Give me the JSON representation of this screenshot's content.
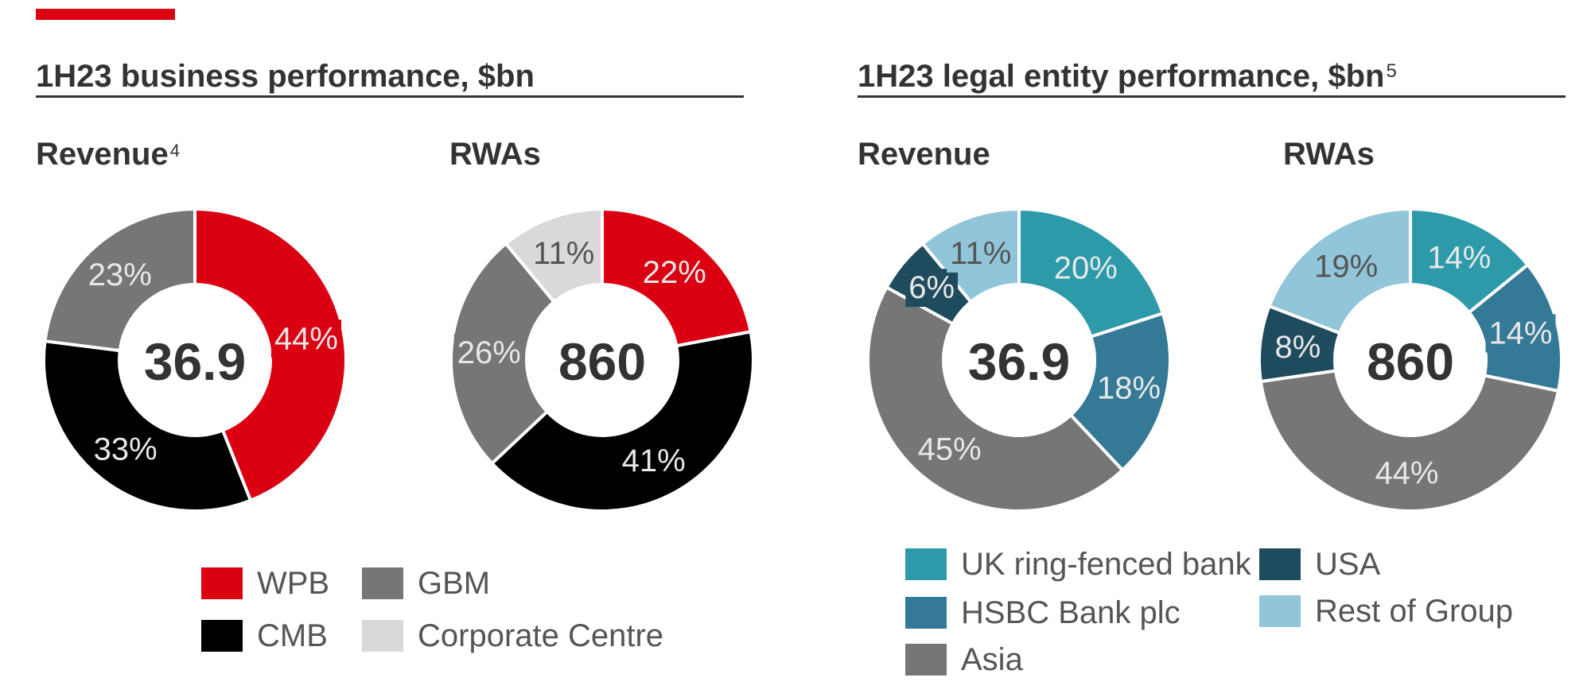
{
  "colors": {
    "accent": "#db0011",
    "WPB": "#db0011",
    "CMB": "#000000",
    "GBM": "#767676",
    "Corporate Centre": "#d9d9d9",
    "UK ring-fenced bank": "#2c9aa8",
    "HSBC Bank plc": "#347995",
    "Asia": "#767676",
    "USA": "#1f4b5e",
    "Rest of Group": "#91c5d9"
  },
  "sections": [
    {
      "title": "1H23 business performance, $bn",
      "footnote": ""
    },
    {
      "title": "1H23 legal entity performance, $bn",
      "footnote": "5"
    }
  ],
  "chart_data": [
    {
      "type": "pie",
      "group": "1H23 business performance, $bn",
      "title": "Revenue",
      "title_footnote": "4",
      "center_label": "36.9",
      "slices": [
        {
          "name": "WPB",
          "value": 44,
          "label": "44%"
        },
        {
          "name": "CMB",
          "value": 33,
          "label": "33%"
        },
        {
          "name": "GBM",
          "value": 23,
          "label": "23%"
        }
      ]
    },
    {
      "type": "pie",
      "group": "1H23 business performance, $bn",
      "title": "RWAs",
      "title_footnote": "",
      "center_label": "860",
      "slices": [
        {
          "name": "WPB",
          "value": 22,
          "label": "22%"
        },
        {
          "name": "CMB",
          "value": 41,
          "label": "41%"
        },
        {
          "name": "GBM",
          "value": 26,
          "label": "26%"
        },
        {
          "name": "Corporate Centre",
          "value": 11,
          "label": "11%"
        }
      ]
    },
    {
      "type": "pie",
      "group": "1H23 legal entity performance, $bn",
      "title": "Revenue",
      "title_footnote": "",
      "center_label": "36.9",
      "slices": [
        {
          "name": "UK ring-fenced bank",
          "value": 20,
          "label": "20%"
        },
        {
          "name": "HSBC Bank plc",
          "value": 18,
          "label": "18%"
        },
        {
          "name": "Asia",
          "value": 45,
          "label": "45%"
        },
        {
          "name": "USA",
          "value": 6,
          "label": "6%"
        },
        {
          "name": "Rest of Group",
          "value": 11,
          "label": "11%"
        }
      ]
    },
    {
      "type": "pie",
      "group": "1H23 legal entity performance, $bn",
      "title": "RWAs",
      "title_footnote": "",
      "center_label": "860",
      "slices": [
        {
          "name": "UK ring-fenced bank",
          "value": 14,
          "label": "14%"
        },
        {
          "name": "HSBC Bank plc",
          "value": 14,
          "label": "14%"
        },
        {
          "name": "Asia",
          "value": 44,
          "label": "44%"
        },
        {
          "name": "USA",
          "value": 8,
          "label": "8%"
        },
        {
          "name": "Rest of Group",
          "value": 19,
          "label": "19%"
        }
      ]
    }
  ],
  "legends": {
    "business": [
      "WPB",
      "GBM",
      "CMB",
      "Corporate Centre"
    ],
    "legal_entity": [
      "UK ring-fenced bank",
      "USA",
      "HSBC Bank plc",
      "Rest of Group",
      "Asia"
    ]
  }
}
